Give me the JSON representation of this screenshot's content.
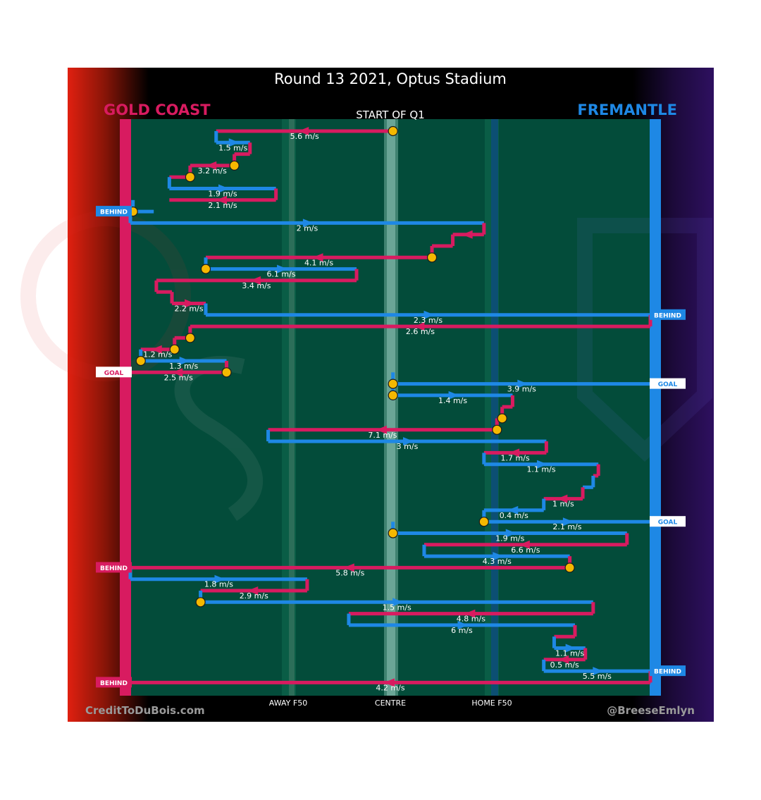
{
  "title": "Round 13 2021, Optus Stadium",
  "subtitle": "START OF Q1",
  "teams": {
    "left": {
      "name": "GOLD COAST",
      "color": "#d81b60"
    },
    "right": {
      "name": "FREMANTLE",
      "color": "#1e88e5"
    }
  },
  "axis_labels": [
    "AWAY F50",
    "CENTRE",
    "HOME F50"
  ],
  "credits": {
    "left": "CreditToDuBois.com",
    "right": "@BreeseEmlyn"
  },
  "colors": {
    "field": "#034c3a",
    "background": "#000000",
    "marker": "#f5b800",
    "goal_box": "#ffffff"
  },
  "chart_data": {
    "type": "line",
    "x_meaning": "field position: 0 = Gold Coast goal line (left), 100 = Fremantle goal line (right), 50 = centre",
    "xlim": [
      0,
      100
    ],
    "reference_lines": [
      {
        "name": "AWAY F50",
        "x": 30
      },
      {
        "name": "CENTRE",
        "x": 50
      },
      {
        "name": "HOME F50",
        "x": 70
      }
    ],
    "chains": [
      {
        "team": "GC",
        "from": 50.5,
        "to": 16.5,
        "speed": "5.6 m/s",
        "start_marker": true
      },
      {
        "team": "FRE",
        "from": 16.5,
        "to": 23.0,
        "speed": "1.5 m/s"
      },
      {
        "team": "GC",
        "from": 23.0,
        "to": 20.0,
        "speed": "",
        "start_marker": false
      },
      {
        "team": "GC",
        "from": 20.0,
        "to": 11.5,
        "speed": "3.2 m/s",
        "start_marker": true
      },
      {
        "team": "GC",
        "from": 11.5,
        "to": 7.5,
        "speed": "",
        "start_marker": true
      },
      {
        "team": "FRE",
        "from": 7.5,
        "to": 28.0,
        "speed": "1.9 m/s"
      },
      {
        "team": "GC",
        "from": 28.0,
        "to": 7.5,
        "speed": "2.1 m/s"
      },
      {
        "team": "FRE",
        "from": 0.5,
        "to": 4.5,
        "speed": "",
        "start_marker": true,
        "result": "BEHIND",
        "result_side": "left"
      },
      {
        "team": "FRE",
        "from": 0.0,
        "to": 68.0,
        "speed": "2 m/s"
      },
      {
        "team": "GC",
        "from": 68.0,
        "to": 62.0,
        "speed": ""
      },
      {
        "team": "GC",
        "from": 62.0,
        "to": 58.0,
        "speed": ""
      },
      {
        "team": "GC",
        "from": 58.0,
        "to": 14.5,
        "speed": "4.1 m/s",
        "start_marker": true
      },
      {
        "team": "FRE",
        "from": 14.5,
        "to": 43.5,
        "speed": "6.1 m/s",
        "start_marker": true
      },
      {
        "team": "GC",
        "from": 43.5,
        "to": 5.0,
        "speed": "3.4 m/s"
      },
      {
        "team": "GC",
        "from": 5.0,
        "to": 8.0,
        "speed": ""
      },
      {
        "team": "GC",
        "from": 8.0,
        "to": 14.5,
        "speed": "2.2 m/s"
      },
      {
        "team": "FRE",
        "from": 14.5,
        "to": 100.0,
        "speed": "2.3 m/s",
        "result": "BEHIND",
        "result_side": "right"
      },
      {
        "team": "GC",
        "from": 100.0,
        "to": 11.5,
        "speed": "2.6 m/s"
      },
      {
        "team": "GC",
        "from": 11.5,
        "to": 8.5,
        "speed": "",
        "start_marker": true
      },
      {
        "team": "GC",
        "from": 8.5,
        "to": 2.0,
        "speed": "1.2 m/s",
        "start_marker": true
      },
      {
        "team": "FRE",
        "from": 2.0,
        "to": 18.5,
        "speed": "1.3 m/s",
        "start_marker": true
      },
      {
        "team": "GC",
        "from": 18.5,
        "to": 0.0,
        "speed": "2.5 m/s",
        "start_marker": true,
        "result": "GOAL",
        "result_side": "left"
      },
      {
        "team": "FRE",
        "from": 50.5,
        "to": 100.0,
        "speed": "3.9 m/s",
        "start_marker": true,
        "result": "GOAL",
        "result_side": "right"
      },
      {
        "team": "FRE",
        "from": 50.5,
        "to": 73.5,
        "speed": "1.4 m/s",
        "start_marker": true
      },
      {
        "team": "GC",
        "from": 73.5,
        "to": 71.5,
        "speed": ""
      },
      {
        "team": "GC",
        "from": 71.5,
        "to": 70.5,
        "speed": "",
        "start_marker": true
      },
      {
        "team": "GC",
        "from": 70.5,
        "to": 26.5,
        "speed": "7.1 m/s",
        "start_marker": true
      },
      {
        "team": "FRE",
        "from": 26.5,
        "to": 80.0,
        "speed": "3 m/s"
      },
      {
        "team": "GC",
        "from": 80.0,
        "to": 68.0,
        "speed": "1.7 m/s"
      },
      {
        "team": "FRE",
        "from": 68.0,
        "to": 90.0,
        "speed": "1.1 m/s"
      },
      {
        "team": "GC",
        "from": 90.0,
        "to": 89.0,
        "speed": ""
      },
      {
        "team": "FRE",
        "from": 89.0,
        "to": 87.0,
        "speed": ""
      },
      {
        "team": "GC",
        "from": 87.0,
        "to": 79.5,
        "speed": "1 m/s"
      },
      {
        "team": "FRE",
        "from": 79.5,
        "to": 68.0,
        "speed": "0.4 m/s"
      },
      {
        "team": "FRE",
        "from": 68.0,
        "to": 100.0,
        "speed": "2.1 m/s",
        "start_marker": true,
        "result": "GOAL",
        "result_side": "right"
      },
      {
        "team": "FRE",
        "from": 50.5,
        "to": 95.5,
        "speed": "1.9 m/s",
        "start_marker": true
      },
      {
        "team": "GC",
        "from": 95.5,
        "to": 56.5,
        "speed": "6.6 m/s"
      },
      {
        "team": "FRE",
        "from": 56.5,
        "to": 84.5,
        "speed": "4.3 m/s"
      },
      {
        "team": "GC",
        "from": 84.5,
        "to": 0.0,
        "speed": "5.8 m/s",
        "start_marker": true,
        "result": "BEHIND",
        "result_side": "left"
      },
      {
        "team": "FRE",
        "from": 0.0,
        "to": 34.0,
        "speed": "1.8 m/s"
      },
      {
        "team": "GC",
        "from": 34.0,
        "to": 13.5,
        "speed": "2.9 m/s"
      },
      {
        "team": "FRE",
        "from": 13.5,
        "to": 89.0,
        "speed": "1.5 m/s",
        "start_marker": true
      },
      {
        "team": "GC",
        "from": 89.0,
        "to": 42.0,
        "speed": "4.8 m/s"
      },
      {
        "team": "FRE",
        "from": 42.0,
        "to": 85.5,
        "speed": "6 m/s"
      },
      {
        "team": "GC",
        "from": 85.5,
        "to": 81.5,
        "speed": ""
      },
      {
        "team": "FRE",
        "from": 81.5,
        "to": 87.5,
        "speed": "1.1 m/s"
      },
      {
        "team": "GC",
        "from": 87.5,
        "to": 79.5,
        "speed": "0.5 m/s"
      },
      {
        "team": "FRE",
        "from": 79.5,
        "to": 100.0,
        "speed": "5.5 m/s",
        "result": "BEHIND",
        "result_side": "right"
      },
      {
        "team": "GC",
        "from": 100.0,
        "to": 0.0,
        "speed": "4.2 m/s",
        "result": "BEHIND",
        "result_side": "left"
      }
    ]
  }
}
